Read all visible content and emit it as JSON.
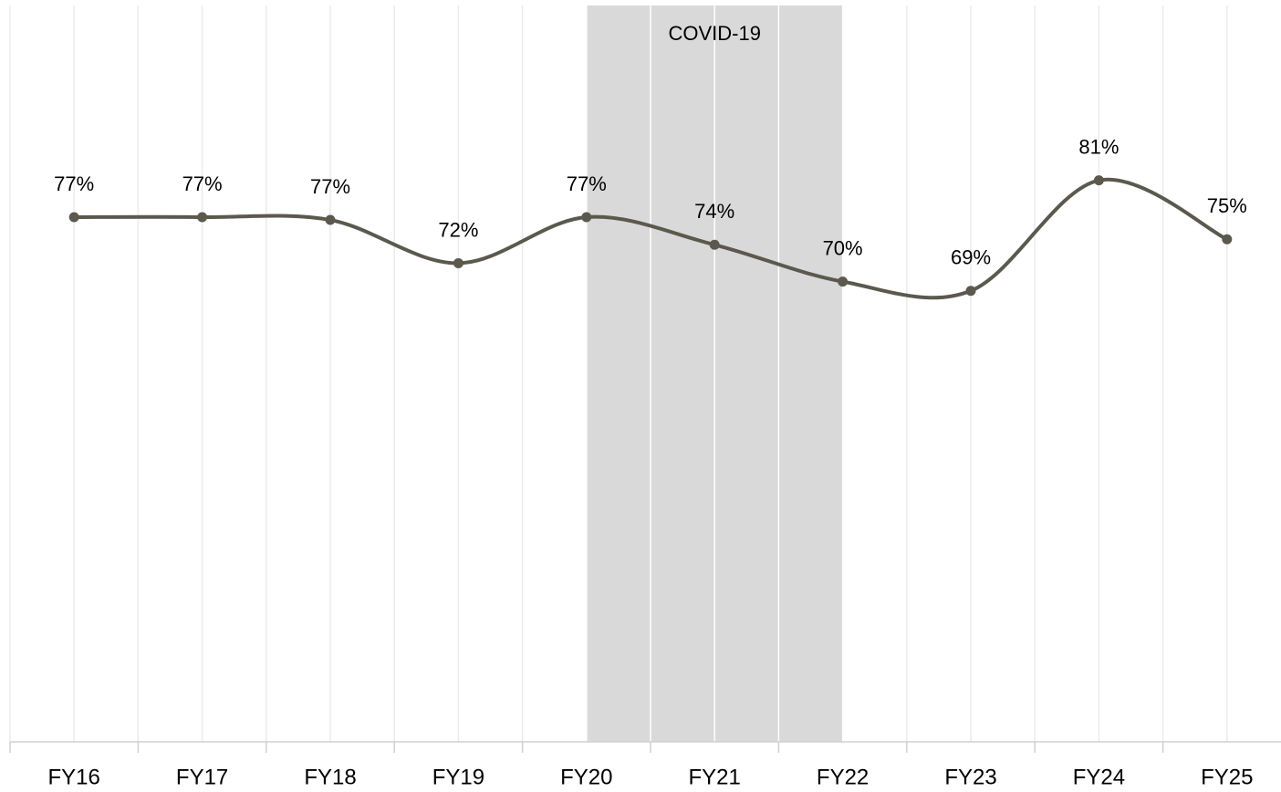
{
  "chart_data": {
    "type": "line",
    "categories": [
      "FY16",
      "FY17",
      "FY18",
      "FY19",
      "FY20",
      "FY21",
      "FY22",
      "FY23",
      "FY24",
      "FY25"
    ],
    "values": [
      77,
      77,
      76.7,
      72,
      77,
      74,
      70,
      69,
      81,
      74.6
    ],
    "value_labels": [
      "77%",
      "77%",
      "77%",
      "72%",
      "77%",
      "74%",
      "70%",
      "69%",
      "81%",
      "75%"
    ],
    "color": "#5b594e",
    "ylim": [
      20,
      100
    ],
    "smooth": true,
    "shaded_region": {
      "label": "COVID-19",
      "from": "FY20",
      "to": "FY22",
      "color": "#d9d9d9"
    }
  }
}
